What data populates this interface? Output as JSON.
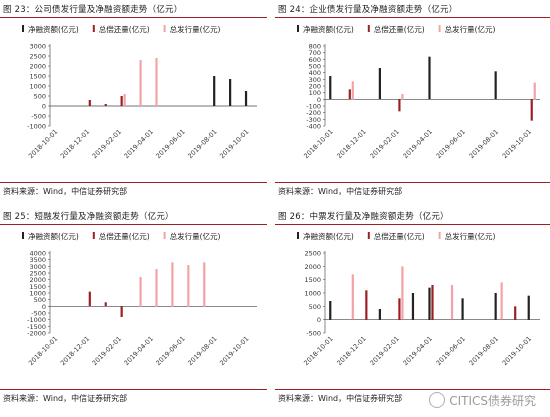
{
  "charts": [
    {
      "id": "p23",
      "title": "图 23：公司债发行量及净融资额走势（亿元）",
      "source": "资料来源：Wind，中信证券研究部",
      "chart_data": {
        "type": "bar",
        "categories": [
          "2018-10-01",
          "2018-11-01",
          "2018-12-01",
          "2019-01-01",
          "2019-02-01",
          "2019-03-01",
          "2019-04-01",
          "2019-05-01",
          "2019-06-01",
          "2019-07-01",
          "2019-08-01",
          "2019-09-01",
          "2019-10-01"
        ],
        "tick_labels": [
          "2018-10-01",
          "2018-12-01",
          "2019-02-01",
          "2019-04-01",
          "2019-06-01",
          "2019-08-01",
          "2019-10-01"
        ],
        "yticks": [
          "3000",
          "2500",
          "2000",
          "1500",
          "1000",
          "500",
          "0",
          "-500",
          "-1000"
        ],
        "ylim": [
          -1000,
          3000
        ],
        "series": [
          {
            "name": "净融资额(亿元)",
            "color": "#222222",
            "values": [
              0,
              0,
              0,
              0,
              0,
              0,
              0,
              0,
              0,
              0,
              1500,
              1350,
              750
            ]
          },
          {
            "name": "总偿还量(亿元)",
            "color": "#9d1f24",
            "values": [
              0,
              0,
              300,
              100,
              500,
              0,
              0,
              0,
              0,
              0,
              0,
              0,
              0
            ]
          },
          {
            "name": "总发行量(亿元)",
            "color": "#f2a3a6",
            "values": [
              0,
              0,
              0,
              0,
              600,
              2300,
              2400,
              0,
              0,
              0,
              0,
              0,
              0
            ]
          }
        ]
      }
    },
    {
      "id": "p24",
      "title": "图 24：企业债发行量及净融资额走势（亿元）",
      "source": "资料来源：Wind，中信证券研究部",
      "chart_data": {
        "type": "bar",
        "categories": [
          "2018-10-01",
          "2018-11-01",
          "2018-12-01",
          "2019-01-01",
          "2019-02-01",
          "2019-03-01",
          "2019-04-01",
          "2019-05-01",
          "2019-06-01",
          "2019-07-01",
          "2019-08-01",
          "2019-09-01",
          "2019-10-01"
        ],
        "tick_labels": [
          "2018-10-01",
          "2018-12-01",
          "2019-02-01",
          "2019-04-01",
          "2019-06-01",
          "2019-08-01",
          "2019-10-01"
        ],
        "yticks": [
          "800",
          "700",
          "600",
          "500",
          "400",
          "300",
          "200",
          "100",
          "0",
          "-100",
          "-200",
          "-300",
          "-400"
        ],
        "ylim": [
          -400,
          800
        ],
        "series": [
          {
            "name": "净融资额(亿元)",
            "color": "#222222",
            "values": [
              350,
              0,
              0,
              470,
              0,
              0,
              640,
              0,
              0,
              0,
              420,
              0,
              0
            ]
          },
          {
            "name": "总偿还量(亿元)",
            "color": "#9d1f24",
            "values": [
              0,
              150,
              0,
              0,
              -180,
              0,
              0,
              0,
              0,
              0,
              0,
              0,
              -320
            ]
          },
          {
            "name": "总发行量(亿元)",
            "color": "#f2a3a6",
            "values": [
              0,
              270,
              0,
              0,
              80,
              0,
              0,
              0,
              0,
              0,
              0,
              0,
              250
            ]
          }
        ]
      }
    },
    {
      "id": "p25",
      "title": "图 25：短融发行量及净融资额走势（亿元）",
      "source": "资料来源：Wind，中信证券研究部",
      "chart_data": {
        "type": "bar",
        "categories": [
          "2018-10-01",
          "2018-11-01",
          "2018-12-01",
          "2019-01-01",
          "2019-02-01",
          "2019-03-01",
          "2019-04-01",
          "2019-05-01",
          "2019-06-01",
          "2019-07-01",
          "2019-08-01",
          "2019-09-01",
          "2019-10-01"
        ],
        "tick_labels": [
          "2018-10-01",
          "2018-12-01",
          "2019-02-01",
          "2019-04-01",
          "2019-06-01",
          "2019-08-01",
          "2019-10-01"
        ],
        "yticks": [
          "4000",
          "3500",
          "3000",
          "2500",
          "2000",
          "1500",
          "1000",
          "500",
          "0",
          "-500",
          "-1000",
          "-1500",
          "-2000"
        ],
        "ylim": [
          -2000,
          4000
        ],
        "series": [
          {
            "name": "净融资额(亿元)",
            "color": "#222222",
            "values": [
              0,
              0,
              0,
              0,
              0,
              0,
              0,
              0,
              0,
              0,
              0,
              0,
              0
            ]
          },
          {
            "name": "总偿还量(亿元)",
            "color": "#9d1f24",
            "values": [
              0,
              0,
              1100,
              300,
              -800,
              0,
              0,
              0,
              0,
              0,
              0,
              0,
              0
            ]
          },
          {
            "name": "总发行量(亿元)",
            "color": "#f2a3a6",
            "values": [
              0,
              0,
              0,
              0,
              0,
              2200,
              2800,
              3300,
              3100,
              3300,
              0,
              0,
              0
            ]
          }
        ]
      }
    },
    {
      "id": "p26",
      "title": "图 26：中票发行量及净融资额走势（亿元）",
      "source": "资料来源：Wind，中信证券研究部",
      "chart_data": {
        "type": "bar",
        "categories": [
          "2018-10-01",
          "2018-11-01",
          "2018-12-01",
          "2019-01-01",
          "2019-02-01",
          "2019-03-01",
          "2019-04-01",
          "2019-05-01",
          "2019-06-01",
          "2019-07-01",
          "2019-08-01",
          "2019-09-01",
          "2019-10-01"
        ],
        "tick_labels": [
          "2018-10-01",
          "2018-12-01",
          "2019-02-01",
          "2019-04-01",
          "2019-06-01",
          "2019-08-01",
          "2019-10-01"
        ],
        "yticks": [
          "2500",
          "2000",
          "1500",
          "1000",
          "500",
          "0",
          "-500"
        ],
        "ylim": [
          -500,
          2500
        ],
        "series": [
          {
            "name": "净融资额(亿元)",
            "color": "#222222",
            "values": [
              700,
              0,
              0,
              400,
              0,
              1000,
              1200,
              0,
              800,
              0,
              1000,
              0,
              900
            ]
          },
          {
            "name": "总偿还量(亿元)",
            "color": "#9d1f24",
            "values": [
              0,
              0,
              1100,
              0,
              800,
              0,
              1300,
              0,
              0,
              0,
              0,
              500,
              0
            ]
          },
          {
            "name": "总发行量(亿元)",
            "color": "#f2a3a6",
            "values": [
              0,
              1700,
              0,
              0,
              2000,
              0,
              0,
              1300,
              0,
              0,
              1400,
              0,
              0
            ]
          }
        ]
      }
    }
  ],
  "watermark": "CITICS债券研究"
}
